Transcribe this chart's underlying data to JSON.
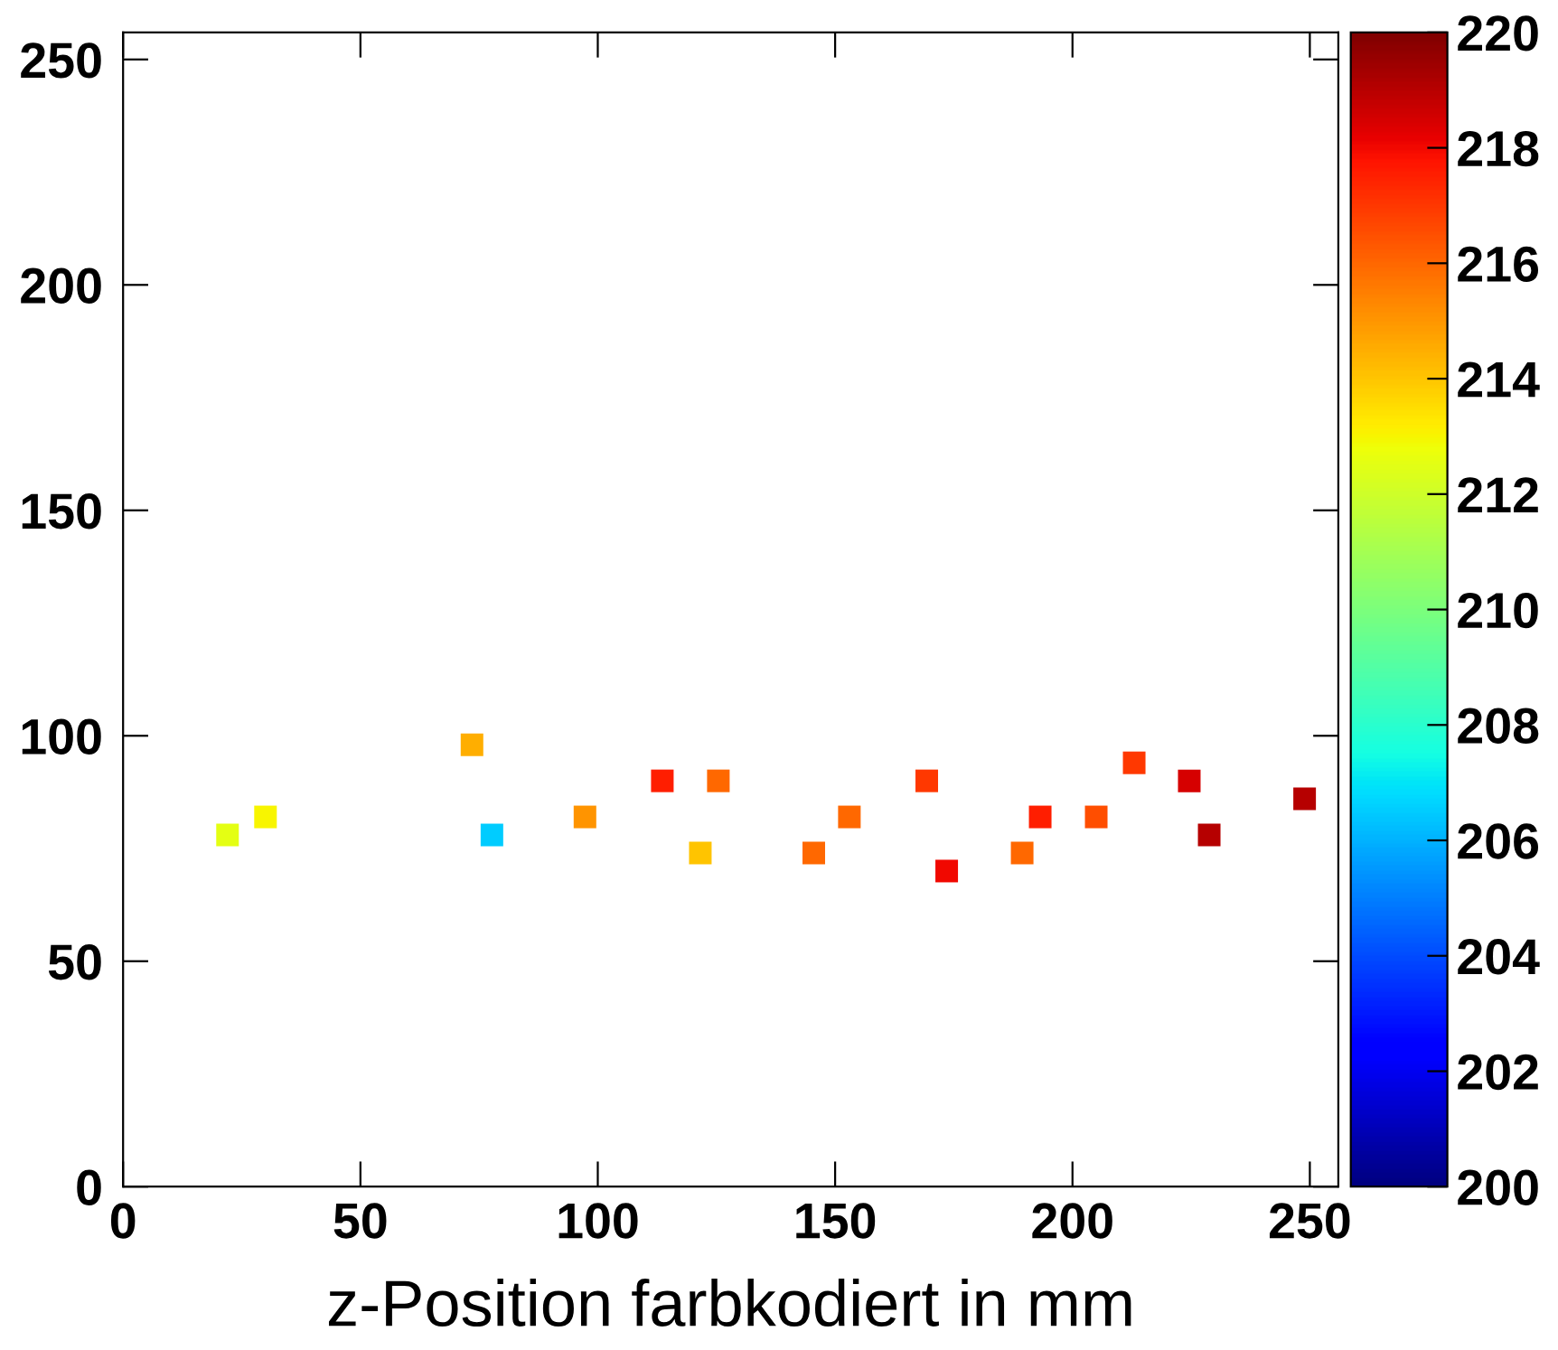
{
  "chart_data": {
    "type": "scatter",
    "xlabel": "z-Position farbkodiert in mm",
    "x": [
      22,
      30,
      73.5,
      77.7,
      97.3,
      113.6,
      121.6,
      125.4,
      145.5,
      153,
      169.3,
      173.5,
      189.4,
      193.2,
      205,
      213,
      224.6,
      228.8,
      248.9
    ],
    "values": [
      78,
      82,
      98,
      78,
      82,
      90,
      74,
      90,
      74,
      82,
      90,
      70,
      74,
      82,
      82,
      94,
      90,
      78,
      86
    ],
    "cvalues": [
      212.5,
      213,
      214.5,
      206.5,
      215,
      217.5,
      214,
      216,
      216,
      216,
      217,
      218,
      216,
      217.5,
      216.5,
      217,
      218.5,
      219,
      219
    ],
    "marker": "square",
    "xlim": [
      0,
      256
    ],
    "ylim": [
      0,
      256
    ],
    "xticks": [
      0,
      50,
      100,
      150,
      200,
      250
    ],
    "yticks": [
      0,
      50,
      100,
      150,
      200,
      250
    ],
    "clim": [
      200,
      220
    ],
    "cticks": [
      200,
      202,
      204,
      206,
      208,
      210,
      212,
      214,
      216,
      218,
      220
    ],
    "grid": false,
    "legend": false
  }
}
